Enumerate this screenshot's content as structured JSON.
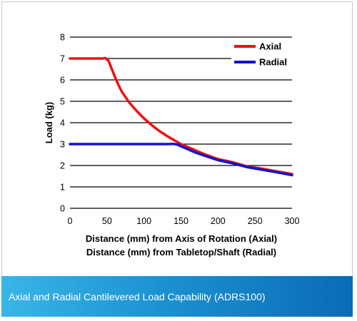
{
  "caption": "Axial and Radial Cantilevered Load Capability (ADRS100)",
  "chart_data": {
    "type": "line",
    "ylabel": "Load (kg)",
    "xlabel_lines": [
      "Distance (mm) from Axis of Rotation (Axial)",
      "Distance (mm) from Tabletop/Shaft (Radial)"
    ],
    "xlim": [
      0,
      300
    ],
    "ylim": [
      0,
      8
    ],
    "x_ticks": [
      0,
      50,
      100,
      150,
      200,
      250,
      300
    ],
    "y_ticks": [
      0,
      1,
      2,
      3,
      4,
      5,
      6,
      7,
      8
    ],
    "grid": "horizontal",
    "legend_position": "top-right",
    "series": [
      {
        "name": "Axial",
        "color": "#ee1111",
        "x": [
          0,
          44,
          48,
          52,
          56,
          60,
          65,
          70,
          80,
          90,
          100,
          110,
          120,
          130,
          140,
          150,
          160,
          180,
          200,
          220,
          240,
          260,
          280,
          300
        ],
        "y": [
          7.0,
          7.0,
          7.02,
          6.9,
          6.55,
          6.2,
          5.8,
          5.45,
          4.95,
          4.55,
          4.2,
          3.9,
          3.63,
          3.4,
          3.2,
          3.0,
          2.85,
          2.55,
          2.3,
          2.15,
          1.95,
          1.85,
          1.72,
          1.6
        ]
      },
      {
        "name": "Radial",
        "color": "#1111cc",
        "x": [
          0,
          50,
          100,
          130,
          140,
          145,
          150,
          160,
          170,
          180,
          200,
          220,
          240,
          260,
          280,
          300
        ],
        "y": [
          3.0,
          3.0,
          3.0,
          3.0,
          3.01,
          2.98,
          2.9,
          2.75,
          2.6,
          2.48,
          2.25,
          2.1,
          1.92,
          1.8,
          1.68,
          1.55
        ]
      }
    ]
  }
}
